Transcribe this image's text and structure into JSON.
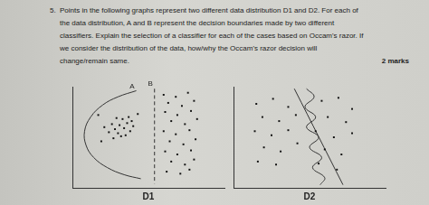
{
  "question": {
    "number": "5.",
    "lines": [
      "Points in the following graphs represent two different data distribution D1 and D2. For each of",
      "the data distribution, A and B represent the decision boundaries made by two different",
      "classifiers. Explain the selection of a classifier for each of the cases based on Occam's razor. If",
      "we consider the distribution of the data, how/why the Occam's razor decision will",
      "change/remain same."
    ],
    "marks": "2 marks"
  },
  "chart_data": [
    {
      "type": "scatter",
      "title": "D1",
      "xlim": [
        0,
        10
      ],
      "ylim": [
        0,
        10
      ],
      "grid": false,
      "tick_labels": false,
      "marker": "square",
      "color": "#111111",
      "points": [
        [
          2.8,
          5.8
        ],
        [
          3.1,
          6.2
        ],
        [
          3.4,
          5.9
        ],
        [
          3.0,
          5.4
        ],
        [
          3.6,
          6.4
        ],
        [
          3.3,
          6.8
        ],
        [
          2.6,
          6.3
        ],
        [
          3.8,
          5.6
        ],
        [
          3.2,
          5.1
        ],
        [
          2.9,
          6.9
        ],
        [
          3.7,
          7.0
        ],
        [
          2.4,
          5.5
        ],
        [
          3.5,
          5.2
        ],
        [
          4.0,
          6.1
        ],
        [
          2.7,
          4.9
        ],
        [
          3.9,
          6.6
        ],
        [
          1.7,
          7.2
        ],
        [
          2.1,
          6.0
        ],
        [
          4.3,
          7.3
        ],
        [
          1.9,
          4.6
        ],
        [
          6.0,
          9.2
        ],
        [
          6.8,
          9.0
        ],
        [
          7.6,
          9.4
        ],
        [
          6.3,
          8.4
        ],
        [
          7.2,
          8.1
        ],
        [
          8.0,
          8.6
        ],
        [
          6.1,
          7.5
        ],
        [
          6.9,
          7.2
        ],
        [
          7.8,
          7.6
        ],
        [
          6.5,
          6.6
        ],
        [
          7.4,
          6.3
        ],
        [
          8.2,
          6.8
        ],
        [
          6.0,
          5.6
        ],
        [
          6.8,
          5.3
        ],
        [
          7.7,
          5.7
        ],
        [
          6.4,
          4.6
        ],
        [
          7.3,
          4.3
        ],
        [
          8.1,
          4.8
        ],
        [
          6.1,
          3.6
        ],
        [
          6.9,
          3.3
        ],
        [
          7.8,
          3.7
        ],
        [
          6.5,
          2.6
        ],
        [
          7.4,
          2.3
        ],
        [
          8.0,
          2.8
        ],
        [
          6.2,
          1.6
        ],
        [
          7.1,
          1.4
        ],
        [
          7.7,
          1.8
        ]
      ],
      "boundaries": [
        {
          "label": "A",
          "line_style": "solid",
          "points": [
            [
              4.2,
              9.6
            ],
            [
              3.0,
              9.0
            ],
            [
              2.0,
              8.2
            ],
            [
              1.2,
              7.0
            ],
            [
              0.8,
              5.6
            ],
            [
              0.9,
              4.2
            ],
            [
              1.4,
              3.0
            ],
            [
              2.3,
              2.0
            ],
            [
              3.4,
              1.3
            ],
            [
              4.5,
              0.9
            ]
          ]
        },
        {
          "label": "B",
          "line_style": "dashed",
          "points": [
            [
              5.4,
              9.8
            ],
            [
              5.4,
              0.4
            ]
          ]
        }
      ]
    },
    {
      "type": "scatter",
      "title": "D2",
      "xlim": [
        0,
        10
      ],
      "ylim": [
        0,
        10
      ],
      "grid": false,
      "tick_labels": false,
      "marker": "square",
      "color": "#111111",
      "points": [
        [
          1.5,
          8.3
        ],
        [
          2.6,
          8.8
        ],
        [
          3.6,
          8.0
        ],
        [
          1.9,
          7.0
        ],
        [
          3.0,
          6.6
        ],
        [
          4.1,
          7.2
        ],
        [
          1.4,
          5.6
        ],
        [
          2.5,
          5.2
        ],
        [
          3.6,
          5.7
        ],
        [
          2.0,
          4.0
        ],
        [
          3.1,
          3.6
        ],
        [
          4.2,
          4.4
        ],
        [
          1.6,
          2.6
        ],
        [
          2.8,
          2.3
        ],
        [
          5.8,
          8.6
        ],
        [
          6.9,
          8.9
        ],
        [
          7.8,
          7.8
        ],
        [
          6.2,
          7.0
        ],
        [
          7.4,
          6.5
        ],
        [
          5.4,
          5.6
        ],
        [
          6.6,
          5.0
        ],
        [
          7.8,
          5.4
        ],
        [
          6.0,
          3.8
        ],
        [
          7.1,
          3.3
        ],
        [
          5.6,
          2.4
        ],
        [
          6.8,
          1.8
        ]
      ],
      "boundaries": [
        {
          "line_style": "solid",
          "points": [
            [
              4.8,
              9.8
            ],
            [
              5.3,
              9.0
            ],
            [
              4.7,
              8.0
            ],
            [
              5.4,
              7.0
            ],
            [
              4.8,
              6.0
            ],
            [
              5.6,
              5.0
            ],
            [
              5.0,
              4.0
            ],
            [
              5.8,
              3.0
            ],
            [
              5.2,
              2.0
            ],
            [
              6.0,
              1.0
            ],
            [
              5.7,
              0.3
            ]
          ]
        },
        {
          "line_style": "solid",
          "points": [
            [
              4.0,
              9.8
            ],
            [
              7.2,
              0.3
            ]
          ]
        }
      ]
    }
  ]
}
